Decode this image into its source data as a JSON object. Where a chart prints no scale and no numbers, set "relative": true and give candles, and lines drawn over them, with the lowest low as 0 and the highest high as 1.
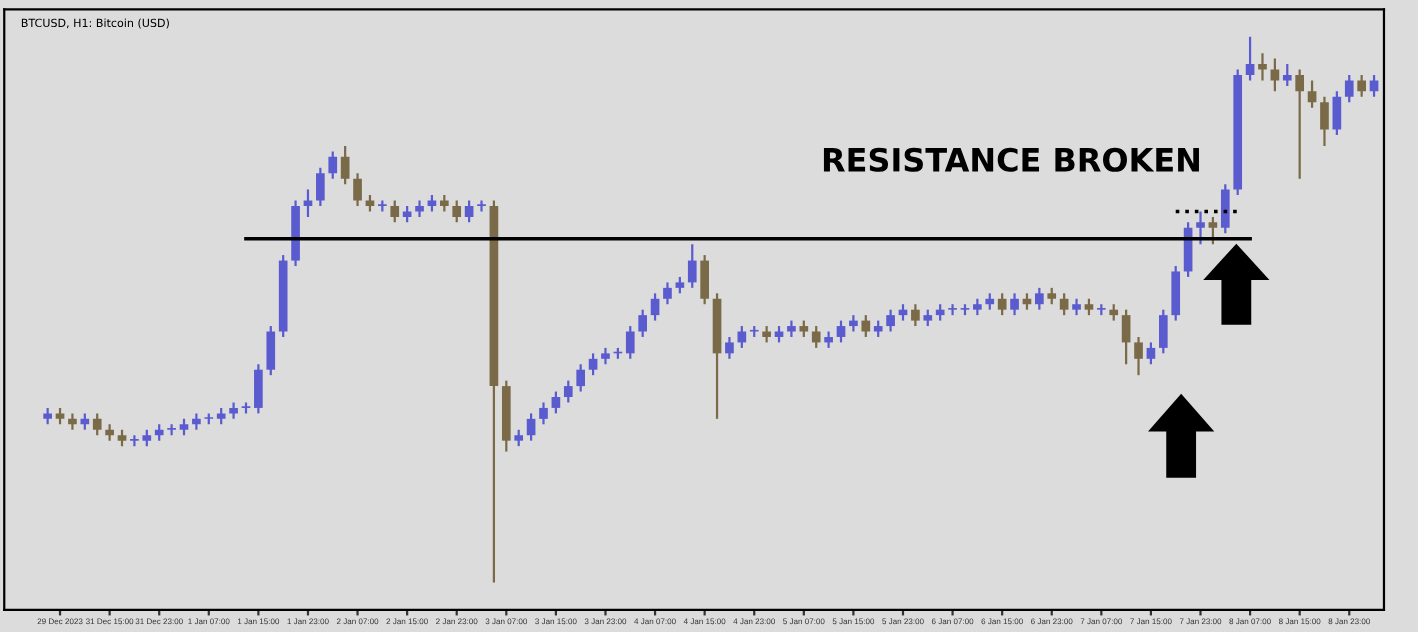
{
  "chart_data": {
    "type": "candlestick",
    "title": "BTCUSD, H1: Bitcoin (USD)",
    "relative": true,
    "annotations": [
      "RESISTANCE BROKEN"
    ],
    "colors": [
      "#5b5bd0",
      "#7a6a48",
      "#7a6a48",
      "#5b5bd0",
      "#7a6a48",
      "#7a6a48",
      "#7a6a48",
      "#5b5bd0",
      "#5b5bd0",
      "#5b5bd0",
      "#5b5bd0",
      "#5b5bd0",
      "#5b5bd0",
      "#5b5bd0",
      "#5b5bd0",
      "#5b5bd0",
      "#5b5bd0",
      "#5b5bd0",
      "#5b5bd0",
      "#5b5bd0",
      "#5b5bd0",
      "#5b5bd0",
      "#5b5bd0",
      "#5b5bd0",
      "#7a6a48",
      "#7a6a48",
      "#7a6a48",
      "#5b5bd0",
      "#7a6a48",
      "#5b5bd0",
      "#5b5bd0",
      "#5b5bd0",
      "#7a6a48",
      "#7a6a48",
      "#5b5bd0",
      "#5b5bd0",
      "#7a6a48",
      "#7a6a48",
      "#5b5bd0",
      "#5b5bd0",
      "#5b5bd0",
      "#5b5bd0",
      "#5b5bd0",
      "#5b5bd0",
      "#5b5bd0",
      "#5b5bd0",
      "#5b5bd0",
      "#5b5bd0",
      "#5b5bd0",
      "#5b5bd0",
      "#5b5bd0",
      "#5b5bd0",
      "#5b5bd0",
      "#7a6a48",
      "#7a6a48",
      "#5b5bd0",
      "#5b5bd0",
      "#5b5bd0",
      "#7a6a48",
      "#5b5bd0",
      "#5b5bd0",
      "#7a6a48",
      "#7a6a48",
      "#5b5bd0",
      "#5b5bd0",
      "#5b5bd0",
      "#7a6a48",
      "#5b5bd0",
      "#5b5bd0",
      "#5b5bd0",
      "#7a6a48",
      "#5b5bd0",
      "#5b5bd0",
      "#5b5bd0",
      "#5b5bd0",
      "#5b5bd0",
      "#5b5bd0",
      "#7a6a48",
      "#5b5bd0",
      "#7a6a48",
      "#5b5bd0",
      "#7a6a48",
      "#7a6a48",
      "#5b5bd0",
      "#7a6a48",
      "#5b5bd0",
      "#7a6a48",
      "#7a6a48",
      "#7a6a48",
      "#5b5bd0",
      "#5b5bd0",
      "#5b5bd0",
      "#5b5bd0",
      "#5b5bd0",
      "#7a6a48",
      "#5b5bd0",
      "#5b5bd0",
      "#5b5bd0",
      "#7a6a48",
      "#7a6a48",
      "#5b5bd0",
      "#7a6a48",
      "#7a6a48",
      "#7a6a48",
      "#5b5bd0",
      "#5b5bd0",
      "#7a6a48",
      "#5b5bd0"
    ],
    "categories": [
      null,
      "29 Dec 2023",
      null,
      null,
      null,
      "31 Dec 15:00",
      null,
      null,
      null,
      "31 Dec 23:00",
      null,
      null,
      null,
      "1 Jan 07:00",
      null,
      null,
      null,
      "1 Jan 15:00",
      null,
      null,
      null,
      "1 Jan 23:00",
      null,
      null,
      null,
      "2 Jan 07:00",
      null,
      null,
      null,
      "2 Jan 15:00",
      null,
      null,
      null,
      "2 Jan 23:00",
      null,
      null,
      null,
      "3 Jan 07:00",
      null,
      null,
      null,
      "3 Jan 15:00",
      null,
      null,
      null,
      "3 Jan 23:00",
      null,
      null,
      null,
      "4 Jan 07:00",
      null,
      null,
      null,
      "4 Jan 15:00",
      null,
      null,
      null,
      "4 Jan 23:00",
      null,
      null,
      null,
      "5 Jan 07:00",
      null,
      null,
      null,
      "5 Jan 15:00",
      null,
      null,
      null,
      "5 Jan 23:00",
      null,
      null,
      null,
      "6 Jan 07:00",
      null,
      null,
      null,
      "6 Jan 15:00",
      null,
      null,
      null,
      "6 Jan 23:00",
      null,
      null,
      null,
      "7 Jan 07:00",
      null,
      null,
      null,
      "7 Jan 15:00",
      null,
      null,
      null,
      "7 Jan 23:00",
      null,
      null,
      null,
      "8 Jan 07:00",
      null,
      null,
      null,
      "8 Jan 15:00",
      null,
      null,
      null,
      "8 Jan 23:00",
      null,
      null
    ],
    "ohlc": [
      [
        0.3,
        0.32,
        0.29,
        0.31
      ],
      [
        0.31,
        0.32,
        0.29,
        0.3
      ],
      [
        0.3,
        0.31,
        0.28,
        0.29
      ],
      [
        0.29,
        0.31,
        0.28,
        0.3
      ],
      [
        0.3,
        0.31,
        0.27,
        0.28
      ],
      [
        0.28,
        0.29,
        0.26,
        0.27
      ],
      [
        0.27,
        0.28,
        0.25,
        0.26
      ],
      [
        0.26,
        0.27,
        0.25,
        0.26
      ],
      [
        0.26,
        0.28,
        0.25,
        0.27
      ],
      [
        0.27,
        0.29,
        0.26,
        0.28
      ],
      [
        0.28,
        0.29,
        0.27,
        0.28
      ],
      [
        0.28,
        0.3,
        0.27,
        0.29
      ],
      [
        0.29,
        0.31,
        0.28,
        0.3
      ],
      [
        0.3,
        0.31,
        0.29,
        0.3
      ],
      [
        0.3,
        0.32,
        0.29,
        0.31
      ],
      [
        0.31,
        0.33,
        0.3,
        0.32
      ],
      [
        0.32,
        0.33,
        0.31,
        0.32
      ],
      [
        0.32,
        0.4,
        0.31,
        0.39
      ],
      [
        0.39,
        0.47,
        0.38,
        0.46
      ],
      [
        0.46,
        0.6,
        0.45,
        0.59
      ],
      [
        0.59,
        0.7,
        0.58,
        0.69
      ],
      [
        0.69,
        0.72,
        0.67,
        0.7
      ],
      [
        0.7,
        0.76,
        0.69,
        0.75
      ],
      [
        0.75,
        0.79,
        0.74,
        0.78
      ],
      [
        0.78,
        0.8,
        0.73,
        0.74
      ],
      [
        0.74,
        0.75,
        0.69,
        0.7
      ],
      [
        0.7,
        0.71,
        0.68,
        0.69
      ],
      [
        0.69,
        0.7,
        0.68,
        0.69
      ],
      [
        0.69,
        0.7,
        0.66,
        0.67
      ],
      [
        0.67,
        0.69,
        0.66,
        0.68
      ],
      [
        0.68,
        0.7,
        0.67,
        0.69
      ],
      [
        0.69,
        0.71,
        0.68,
        0.7
      ],
      [
        0.7,
        0.71,
        0.68,
        0.69
      ],
      [
        0.69,
        0.7,
        0.66,
        0.67
      ],
      [
        0.67,
        0.7,
        0.66,
        0.69
      ],
      [
        0.69,
        0.7,
        0.68,
        0.69
      ],
      [
        0.69,
        0.7,
        0.0,
        0.36
      ],
      [
        0.36,
        0.37,
        0.24,
        0.26
      ],
      [
        0.26,
        0.28,
        0.25,
        0.27
      ],
      [
        0.27,
        0.31,
        0.26,
        0.3
      ],
      [
        0.3,
        0.33,
        0.29,
        0.32
      ],
      [
        0.32,
        0.35,
        0.31,
        0.34
      ],
      [
        0.34,
        0.37,
        0.33,
        0.36
      ],
      [
        0.36,
        0.4,
        0.35,
        0.39
      ],
      [
        0.39,
        0.42,
        0.38,
        0.41
      ],
      [
        0.41,
        0.43,
        0.4,
        0.42
      ],
      [
        0.42,
        0.43,
        0.41,
        0.42
      ],
      [
        0.42,
        0.47,
        0.41,
        0.46
      ],
      [
        0.46,
        0.5,
        0.45,
        0.49
      ],
      [
        0.49,
        0.53,
        0.48,
        0.52
      ],
      [
        0.52,
        0.55,
        0.51,
        0.54
      ],
      [
        0.54,
        0.56,
        0.53,
        0.55
      ],
      [
        0.55,
        0.62,
        0.54,
        0.59
      ],
      [
        0.59,
        0.6,
        0.51,
        0.52
      ],
      [
        0.52,
        0.53,
        0.3,
        0.42
      ],
      [
        0.42,
        0.45,
        0.41,
        0.44
      ],
      [
        0.44,
        0.47,
        0.43,
        0.46
      ],
      [
        0.46,
        0.47,
        0.45,
        0.46
      ],
      [
        0.46,
        0.47,
        0.44,
        0.45
      ],
      [
        0.45,
        0.47,
        0.44,
        0.46
      ],
      [
        0.46,
        0.48,
        0.45,
        0.47
      ],
      [
        0.47,
        0.48,
        0.45,
        0.46
      ],
      [
        0.46,
        0.47,
        0.43,
        0.44
      ],
      [
        0.44,
        0.46,
        0.43,
        0.45
      ],
      [
        0.45,
        0.48,
        0.44,
        0.47
      ],
      [
        0.47,
        0.49,
        0.46,
        0.48
      ],
      [
        0.48,
        0.49,
        0.45,
        0.46
      ],
      [
        0.46,
        0.48,
        0.45,
        0.47
      ],
      [
        0.47,
        0.5,
        0.46,
        0.49
      ],
      [
        0.49,
        0.51,
        0.48,
        0.5
      ],
      [
        0.5,
        0.51,
        0.47,
        0.48
      ],
      [
        0.48,
        0.5,
        0.47,
        0.49
      ],
      [
        0.49,
        0.51,
        0.48,
        0.5
      ],
      [
        0.5,
        0.51,
        0.49,
        0.5
      ],
      [
        0.5,
        0.51,
        0.49,
        0.5
      ],
      [
        0.5,
        0.52,
        0.49,
        0.51
      ],
      [
        0.51,
        0.53,
        0.5,
        0.52
      ],
      [
        0.52,
        0.53,
        0.49,
        0.5
      ],
      [
        0.5,
        0.53,
        0.49,
        0.52
      ],
      [
        0.52,
        0.53,
        0.5,
        0.51
      ],
      [
        0.51,
        0.54,
        0.5,
        0.53
      ],
      [
        0.53,
        0.54,
        0.51,
        0.52
      ],
      [
        0.52,
        0.53,
        0.49,
        0.5
      ],
      [
        0.5,
        0.52,
        0.49,
        0.51
      ],
      [
        0.51,
        0.52,
        0.49,
        0.5
      ],
      [
        0.5,
        0.51,
        0.49,
        0.5
      ],
      [
        0.5,
        0.51,
        0.48,
        0.49
      ],
      [
        0.49,
        0.5,
        0.4,
        0.44
      ],
      [
        0.44,
        0.45,
        0.38,
        0.41
      ],
      [
        0.41,
        0.44,
        0.4,
        0.43
      ],
      [
        0.43,
        0.5,
        0.42,
        0.49
      ],
      [
        0.49,
        0.58,
        0.48,
        0.57
      ],
      [
        0.57,
        0.66,
        0.56,
        0.65
      ],
      [
        0.65,
        0.68,
        0.62,
        0.66
      ],
      [
        0.66,
        0.67,
        0.62,
        0.65
      ],
      [
        0.65,
        0.73,
        0.64,
        0.72
      ],
      [
        0.72,
        0.94,
        0.71,
        0.93
      ],
      [
        0.93,
        1.0,
        0.92,
        0.95
      ],
      [
        0.95,
        0.97,
        0.92,
        0.94
      ],
      [
        0.94,
        0.96,
        0.9,
        0.92
      ],
      [
        0.92,
        0.95,
        0.91,
        0.93
      ],
      [
        0.93,
        0.94,
        0.74,
        0.9
      ],
      [
        0.9,
        0.92,
        0.87,
        0.88
      ],
      [
        0.88,
        0.89,
        0.8,
        0.83
      ],
      [
        0.83,
        0.9,
        0.82,
        0.89
      ],
      [
        0.89,
        0.93,
        0.88,
        0.92
      ],
      [
        0.92,
        0.93,
        0.89,
        0.9
      ],
      [
        0.9,
        0.93,
        0.89,
        0.92
      ]
    ],
    "series": [
      {
        "type": "line",
        "color": "#000000",
        "line_style": "solid",
        "values": [
          null,
          null,
          null,
          null,
          null,
          null,
          null,
          null,
          null,
          null,
          null,
          null,
          null,
          null,
          null,
          null,
          0.63,
          0.63,
          0.63,
          0.63,
          0.63,
          0.63,
          0.63,
          0.63,
          0.63,
          0.63,
          0.63,
          0.63,
          0.63,
          0.63,
          0.63,
          0.63,
          0.63,
          0.63,
          0.63,
          0.63,
          0.63,
          0.63,
          0.63,
          0.63,
          0.63,
          0.63,
          0.63,
          0.63,
          0.63,
          0.63,
          0.63,
          0.63,
          0.63,
          0.63,
          0.63,
          0.63,
          0.63,
          0.63,
          0.63,
          0.63,
          0.63,
          0.63,
          0.63,
          0.63,
          0.63,
          0.63,
          0.63,
          0.63,
          0.63,
          0.63,
          0.63,
          0.63,
          0.63,
          0.63,
          0.63,
          0.63,
          0.63,
          0.63,
          0.63,
          0.63,
          0.63,
          0.63,
          0.63,
          0.63,
          0.63,
          0.63,
          0.63,
          0.63,
          0.63,
          0.63,
          0.63,
          0.63,
          0.63,
          0.63,
          0.63,
          0.63,
          0.63,
          0.63,
          0.63,
          0.63,
          0.63,
          0.63,
          null,
          null,
          null,
          null,
          null,
          null,
          null,
          null,
          null,
          null
        ]
      },
      {
        "type": "line",
        "color": "#000000",
        "line_style": "dotted",
        "values": [
          null,
          null,
          null,
          null,
          null,
          null,
          null,
          null,
          null,
          null,
          null,
          null,
          null,
          null,
          null,
          null,
          null,
          null,
          null,
          null,
          null,
          null,
          null,
          null,
          null,
          null,
          null,
          null,
          null,
          null,
          null,
          null,
          null,
          null,
          null,
          null,
          null,
          null,
          null,
          null,
          null,
          null,
          null,
          null,
          null,
          null,
          null,
          null,
          null,
          null,
          null,
          null,
          null,
          null,
          null,
          null,
          null,
          null,
          null,
          null,
          null,
          null,
          null,
          null,
          null,
          null,
          null,
          null,
          null,
          null,
          null,
          null,
          null,
          null,
          null,
          null,
          null,
          null,
          null,
          null,
          null,
          null,
          null,
          null,
          null,
          null,
          null,
          null,
          null,
          null,
          null,
          0.68,
          0.68,
          0.68,
          0.68,
          0.68,
          0.68,
          null,
          null,
          null,
          null,
          null,
          null,
          null,
          null,
          null,
          null,
          null
        ]
      }
    ]
  }
}
